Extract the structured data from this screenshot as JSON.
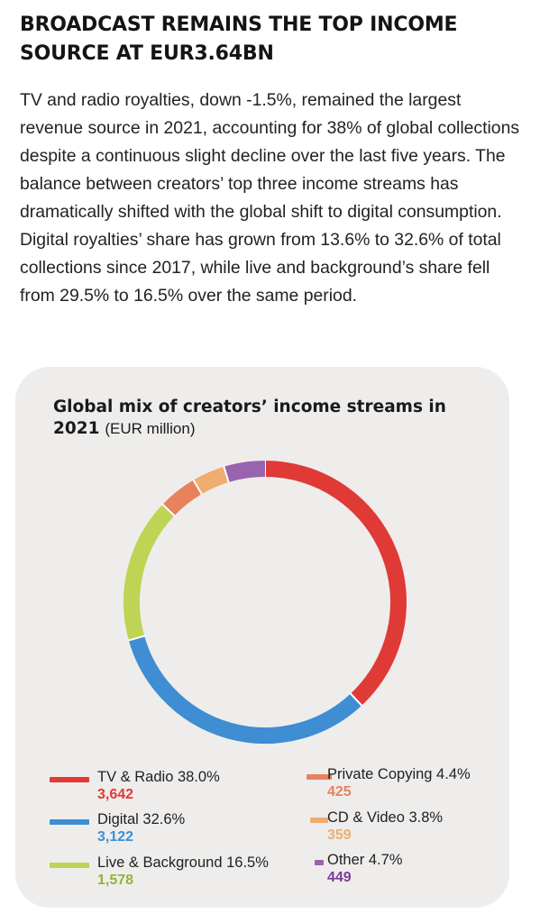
{
  "headline": "BROADCAST REMAINS THE TOP INCOME SOURCE AT EUR3.64BN",
  "intro": "TV and radio royalties, down -1.5%, remained the largest revenue source in 2021, accounting for 38% of global collections despite a continuous slight decline over the last five years. The balance between creators’ top three income streams has dramatically shifted with the global shift to digital consumption. Digital royalties’ share has grown from 13.6% to 32.6% of total collections since 2017, while live and background’s share fell from 29.5% to 16.5% over the same period.",
  "chart_data": {
    "type": "pie",
    "donut": true,
    "title_bold": "Global mix of creators’ income streams in 2021",
    "title_unit": "(EUR million)",
    "slices": [
      {
        "label": "TV & Radio 38.0%",
        "value": 3642,
        "value_label": "3,642",
        "percent": 38.0,
        "color": "#e03a36"
      },
      {
        "label": "Digital 32.6%",
        "value": 3122,
        "value_label": "3,122",
        "percent": 32.6,
        "color": "#3f8dd2"
      },
      {
        "label": "Live & Background 16.5%",
        "value": 1578,
        "value_label": "1,578",
        "percent": 16.5,
        "color": "#bdd454"
      },
      {
        "label": "Private Copying 4.4%",
        "value": 425,
        "value_label": "425",
        "percent": 4.4,
        "color": "#e8815e"
      },
      {
        "label": "CD & Video 3.8%",
        "value": 359,
        "value_label": "359",
        "percent": 3.8,
        "color": "#f0ac71"
      },
      {
        "label": "Other 4.7%",
        "value": 449,
        "value_label": "449",
        "percent": 4.7,
        "color": "#9a63ae"
      }
    ],
    "value_colors": [
      "#e03a36",
      "#3f8dd2",
      "#94b338",
      "#e8815e",
      "#f0ac71",
      "#7d3c98"
    ],
    "legend_placement": "bottom"
  }
}
